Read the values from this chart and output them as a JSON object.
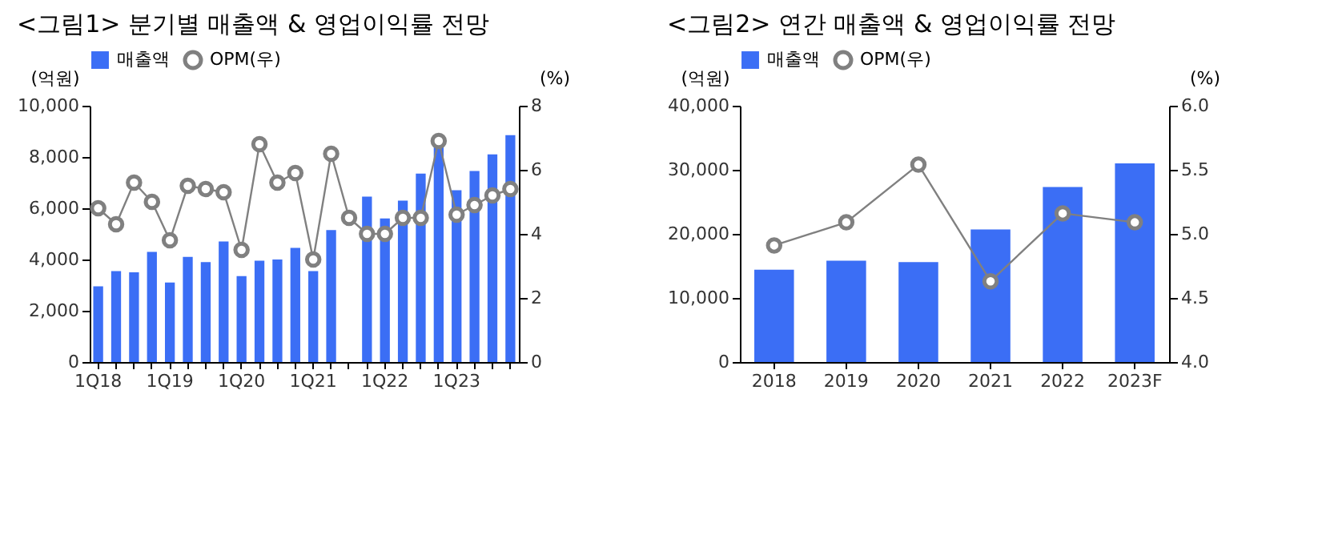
{
  "chart_data": [
    {
      "type": "bar",
      "title": "<그림1> 분기별 매출액 & 영업이익률 전망",
      "ylabel": "(억원)",
      "y2label": "(%)",
      "categories": [
        "1Q18",
        null,
        null,
        null,
        "1Q19",
        null,
        null,
        null,
        "1Q20",
        null,
        null,
        null,
        "1Q21",
        null,
        null,
        null,
        "1Q22",
        null,
        null,
        null,
        "1Q23",
        null,
        null,
        null
      ],
      "series": [
        {
          "name": "매출액",
          "color": "#3b6ef5",
          "values": [
            2950,
            3550,
            3500,
            4300,
            3100,
            4100,
            3900,
            4700,
            3350,
            3950,
            4000,
            4450,
            3550,
            5150,
            null,
            6450,
            5600,
            6300,
            7350,
            8400,
            6700,
            7450,
            8100,
            8850
          ]
        },
        {
          "type": "line",
          "name": "OPM(우)",
          "color": "#808080",
          "axis": "y2",
          "values": [
            4.8,
            4.3,
            5.6,
            5.0,
            3.8,
            5.5,
            5.4,
            5.3,
            3.5,
            6.8,
            5.6,
            5.9,
            3.2,
            6.5,
            4.5,
            4.0,
            4.0,
            4.5,
            4.5,
            6.9,
            4.6,
            4.9,
            5.2,
            5.4
          ]
        }
      ],
      "ylim": [
        0,
        10000
      ],
      "yticks": [
        0,
        {
          "value": 2000,
          "label": "2,000"
        },
        {
          "value": 4000,
          "label": "4,000"
        },
        {
          "value": 6000,
          "label": "6,000"
        },
        {
          "value": 8000,
          "label": "8,000"
        },
        {
          "value": 10000,
          "label": "10,000"
        }
      ],
      "y2lim": [
        0,
        8
      ],
      "y2ticks": [
        0,
        2,
        4,
        6,
        8
      ],
      "legend": "top",
      "marker": "circle",
      "grid": false
    },
    {
      "type": "bar",
      "title": "<그림2> 연간 매출액 & 영업이익률 전망",
      "ylabel": "(억원)",
      "y2label": "(%)",
      "categories": [
        "2018",
        "2019",
        "2020",
        "2021",
        "2022",
        "2023F"
      ],
      "series": [
        {
          "name": "매출액",
          "color": "#3b6ef5",
          "values": [
            14400,
            15800,
            15600,
            20700,
            27300,
            31000
          ]
        },
        {
          "type": "line",
          "name": "OPM(우)",
          "color": "#808080",
          "axis": "y2",
          "values": [
            4.91,
            5.09,
            5.54,
            4.63,
            5.16,
            5.09
          ]
        }
      ],
      "ylim": [
        0,
        40000
      ],
      "yticks": [
        0,
        {
          "value": 10000,
          "label": "10,000"
        },
        {
          "value": 20000,
          "label": "20,000"
        },
        {
          "value": 30000,
          "label": "30,000"
        },
        {
          "value": 40000,
          "label": "40,000"
        }
      ],
      "y2lim": [
        4,
        6
      ],
      "y2ticks": [
        {
          "value": 4,
          "label": "4.0"
        },
        4.5,
        {
          "value": 5,
          "label": "5.0"
        },
        5.5,
        {
          "value": 6,
          "label": "6.0"
        }
      ],
      "legend": "top",
      "marker": "circle",
      "grid": false
    }
  ]
}
